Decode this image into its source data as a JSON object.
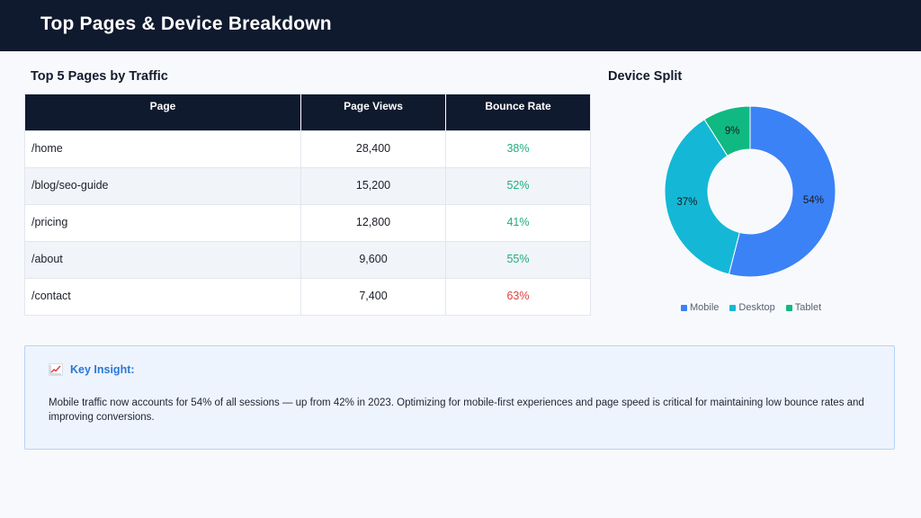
{
  "header": {
    "title": "Top Pages & Device Breakdown"
  },
  "table": {
    "title": "Top 5 Pages by Traffic",
    "columns": [
      "Page",
      "Page Views",
      "Bounce Rate"
    ],
    "rows": [
      {
        "page": "/home",
        "views": "28,400",
        "bounce": "38%",
        "status": "good"
      },
      {
        "page": "/blog/seo-guide",
        "views": "15,200",
        "bounce": "52%",
        "status": "good"
      },
      {
        "page": "/pricing",
        "views": "12,800",
        "bounce": "41%",
        "status": "good"
      },
      {
        "page": "/about",
        "views": "9,600",
        "bounce": "55%",
        "status": "good"
      },
      {
        "page": "/contact",
        "views": "7,400",
        "bounce": "63%",
        "status": "bad"
      }
    ]
  },
  "chart_section": {
    "title": "Device Split"
  },
  "chart_data": {
    "type": "pie",
    "donut": true,
    "categories": [
      "Mobile",
      "Desktop",
      "Tablet"
    ],
    "values": [
      54,
      37,
      9
    ],
    "labels": [
      "54%",
      "37%",
      "9%"
    ],
    "colors": [
      "#3b82f6",
      "#14b8d6",
      "#10b981"
    ],
    "legend_position": "bottom",
    "title": ""
  },
  "insight": {
    "icon": "chart-increasing-icon",
    "title": "Key Insight:",
    "body": "Mobile traffic now accounts for 54% of all sessions — up from 42% in 2023. Optimizing for mobile-first experiences and page speed is critical for maintaining low bounce rates and improving conversions."
  },
  "colors": {
    "header_bg": "#101a2e",
    "bounce_good": "#1fae7e",
    "bounce_bad": "#e0403d",
    "insight_accent": "#2a78d6"
  }
}
